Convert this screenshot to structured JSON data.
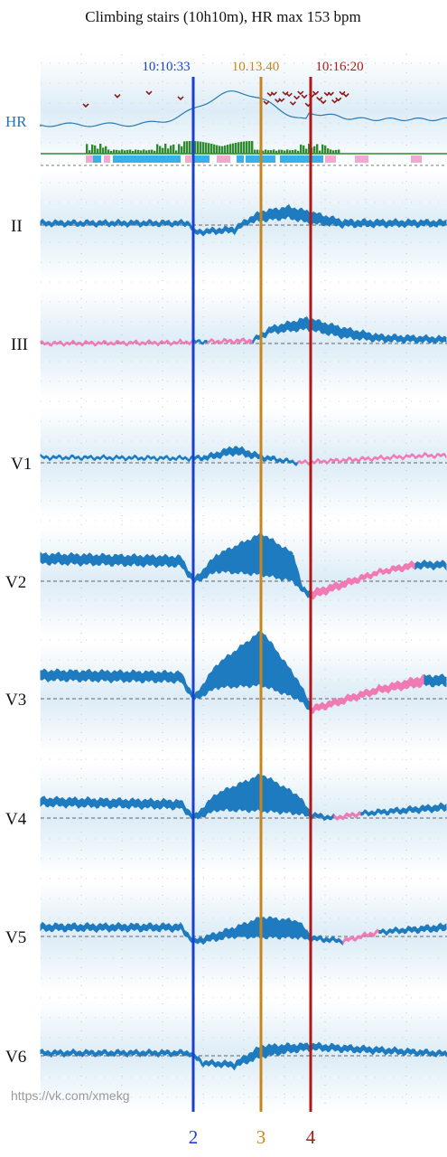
{
  "title": "Climbing stairs (10h10m), HR max 153 bpm",
  "hr_label": "HR",
  "markers": [
    {
      "time": "10:10:33",
      "number": "2"
    },
    {
      "time": "10.13.40",
      "number": "3"
    },
    {
      "time": "10:16:20",
      "number": "4"
    }
  ],
  "leads": [
    "II",
    "III",
    "V1",
    "V2",
    "V3",
    "V4",
    "V5",
    "V6"
  ],
  "watermark": "https://vk.com/xmekg"
}
